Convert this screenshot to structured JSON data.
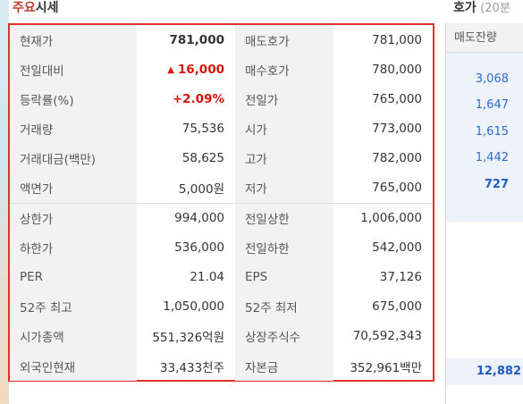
{
  "section": {
    "title_accent": "주요",
    "title_rest": "시세"
  },
  "orderbook": {
    "title": "호가",
    "subtitle": "(20분",
    "header": "매도잔량",
    "values": [
      "3,068",
      "1,647",
      "1,615",
      "1,442",
      "727"
    ],
    "total": "12,882"
  },
  "rows": [
    {
      "label": "현재가",
      "value": "781,000",
      "label2": "매도호가",
      "value2": "781,000"
    },
    {
      "label": "전일대비",
      "arrow": "▲",
      "value": "16,000",
      "label2": "매수호가",
      "value2": "780,000"
    },
    {
      "label": "등락률(%)",
      "value": "+2.09%",
      "label2": "전일가",
      "value2": "765,000"
    },
    {
      "label": "거래량",
      "value": "75,536",
      "label2": "시가",
      "value2": "773,000"
    },
    {
      "label": "거래대금(백만)",
      "value": "58,625",
      "label2": "고가",
      "value2": "782,000"
    },
    {
      "label": "액면가",
      "value": "5,000원",
      "label2": "저가",
      "value2": "765,000"
    },
    {
      "label": "상한가",
      "value": "994,000",
      "label2": "전일상한",
      "value2": "1,006,000"
    },
    {
      "label": "하한가",
      "value": "536,000",
      "label2": "전일하한",
      "value2": "542,000"
    },
    {
      "label": "PER",
      "value": "21.04",
      "label2": "EPS",
      "value2": "37,126"
    },
    {
      "label": "52주 최고",
      "value": "1,050,000",
      "label2": "52주 최저",
      "value2": "675,000"
    },
    {
      "label": "시가총액",
      "value": "551,326억원",
      "label2": "상장주식수",
      "value2": "70,592,343"
    },
    {
      "label": "외국인현재",
      "value": "33,433천주",
      "label2": "자본금",
      "value2": "352,961백만"
    }
  ],
  "colors": {
    "accent_red": "#e0322b",
    "up_red": "#d6150e",
    "ask_blue": "#2a6bd3"
  }
}
